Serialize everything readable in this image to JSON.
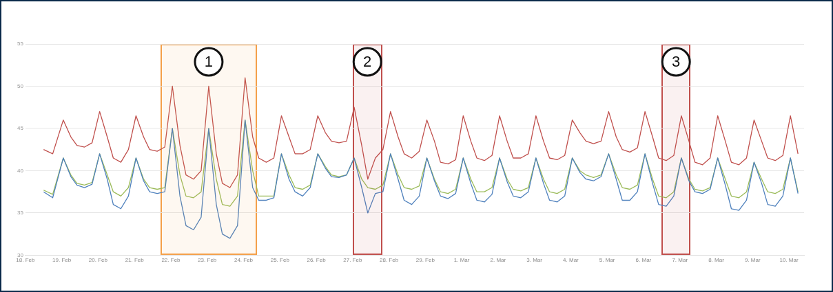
{
  "chart_data": {
    "type": "line",
    "x": [
      "--02-18T12:00",
      "--02-18T18:00",
      "--02-19T01:00",
      "--02-19T06:00",
      "--02-19T10:00",
      "--02-19T15:00",
      "--02-19T20:00",
      "--02-20T01:00",
      "--02-20T06:00",
      "--02-20T10:00",
      "--02-20T15:00",
      "--02-20T20:00",
      "--02-21T01:00",
      "--02-21T06:00",
      "--02-21T10:00",
      "--02-21T15:00",
      "--02-21T20:00",
      "--02-22T01:00",
      "--02-22T06:00",
      "--02-22T10:00",
      "--02-22T15:00",
      "--02-22T20:00",
      "--02-23T01:00",
      "--02-23T06:00",
      "--02-23T10:00",
      "--02-23T15:00",
      "--02-23T20:00",
      "--02-24T01:00",
      "--02-24T06:00",
      "--02-24T10:00",
      "--02-24T15:00",
      "--02-24T20:00",
      "--02-25T01:00",
      "--02-25T06:00",
      "--02-25T10:00",
      "--02-25T15:00",
      "--02-25T20:00",
      "--02-26T01:00",
      "--02-26T06:00",
      "--02-26T10:00",
      "--02-26T15:00",
      "--02-26T20:00",
      "--02-27T01:00",
      "--02-27T06:00",
      "--02-27T10:00",
      "--02-27T15:00",
      "--02-27T20:00",
      "--02-28T01:00",
      "--02-28T06:00",
      "--02-28T10:00",
      "--02-28T15:00",
      "--02-28T20:00",
      "--02-29T01:00",
      "--02-29T06:00",
      "--02-29T10:00",
      "--02-29T15:00",
      "--02-29T20:00",
      "--03-01T01:00",
      "--03-01T06:00",
      "--03-01T10:00",
      "--03-01T15:00",
      "--03-01T20:00",
      "--03-02T01:00",
      "--03-02T06:00",
      "--03-02T10:00",
      "--03-02T15:00",
      "--03-02T20:00",
      "--03-03T01:00",
      "--03-03T06:00",
      "--03-03T10:00",
      "--03-03T15:00",
      "--03-03T20:00",
      "--03-04T01:00",
      "--03-04T06:00",
      "--03-04T10:00",
      "--03-04T15:00",
      "--03-04T20:00",
      "--03-05T01:00",
      "--03-05T06:00",
      "--03-05T10:00",
      "--03-05T15:00",
      "--03-05T20:00",
      "--03-06T01:00",
      "--03-06T06:00",
      "--03-06T10:00",
      "--03-06T15:00",
      "--03-06T20:00",
      "--03-07T01:00",
      "--03-07T06:00",
      "--03-07T10:00",
      "--03-07T15:00",
      "--03-07T20:00",
      "--03-08T01:00",
      "--03-08T06:00",
      "--03-08T10:00",
      "--03-08T15:00",
      "--03-08T20:00",
      "--03-09T01:00",
      "--03-09T06:00",
      "--03-09T10:00",
      "--03-09T15:00",
      "--03-09T20:00",
      "--03-10T01:00",
      "--03-10T06:00"
    ],
    "series": [
      {
        "color": "#c0504d",
        "values": [
          42.5,
          42,
          46,
          44,
          43,
          42.8,
          43.3,
          47,
          44,
          41.5,
          41,
          42.5,
          46.5,
          44,
          42.5,
          42.3,
          42.8,
          50,
          43,
          39.5,
          39,
          40,
          50,
          42,
          38.5,
          38,
          39.5,
          51,
          44,
          41.5,
          41,
          41.5,
          46.5,
          44,
          42,
          42,
          42.5,
          46.5,
          44.5,
          43.5,
          43.3,
          43.5,
          47.5,
          43,
          39,
          41.5,
          42.5,
          47,
          44,
          42,
          41.5,
          42.3,
          46,
          43.5,
          41,
          40.8,
          41.3,
          46.5,
          43.5,
          41.5,
          41.2,
          41.8,
          46.5,
          43.5,
          41.5,
          41.5,
          42,
          46.5,
          43.5,
          41.5,
          41.3,
          41.8,
          46,
          44.5,
          43.5,
          43.2,
          43.5,
          47,
          44,
          42.5,
          42.2,
          42.7,
          47,
          44,
          41.5,
          41.2,
          41.8,
          46.5,
          43.5,
          41,
          40.7,
          41.5,
          46.5,
          43.5,
          41,
          40.7,
          41.5,
          46,
          43.5,
          41.5,
          41.2,
          41.8,
          46.5,
          42
        ]
      },
      {
        "color": "#4f81bd",
        "values": [
          37.5,
          36.8,
          41.5,
          39.3,
          38.3,
          38,
          38.4,
          42,
          39,
          36,
          35.5,
          37,
          41.5,
          38.8,
          37.5,
          37.3,
          37.5,
          45,
          37,
          33.5,
          33,
          34.5,
          45,
          36,
          32.5,
          32,
          33.5,
          46,
          38,
          36.5,
          36.5,
          36.8,
          42,
          39,
          37.5,
          37,
          38,
          42,
          40.3,
          39.3,
          39.2,
          39.5,
          41.5,
          38,
          35,
          37.3,
          37.5,
          42,
          39,
          36.5,
          36,
          37,
          41.5,
          38.8,
          37,
          36.7,
          37.3,
          41.5,
          38.5,
          36.5,
          36.3,
          37.2,
          41.5,
          38.7,
          37,
          36.8,
          37.5,
          41.5,
          38.5,
          36.5,
          36.3,
          37,
          41.5,
          39.8,
          39,
          38.8,
          39.3,
          42,
          39,
          36.5,
          36.5,
          37.5,
          42,
          38.5,
          36,
          35.8,
          37,
          41.5,
          38.8,
          37.5,
          37.3,
          37.8,
          41.5,
          38.3,
          35.5,
          35.3,
          36.5,
          41,
          38.5,
          36,
          35.8,
          37,
          41.5,
          37.3
        ]
      },
      {
        "color": "#9bbb59",
        "values": [
          37.7,
          37.2,
          41.5,
          39.5,
          38.5,
          38.3,
          38.6,
          42,
          39.5,
          37.5,
          37,
          38,
          41.5,
          39,
          38,
          37.8,
          38,
          45,
          39.5,
          37,
          36.8,
          37.5,
          45,
          39,
          36,
          35.8,
          37,
          46,
          40,
          37,
          37,
          37,
          42,
          39.5,
          38,
          37.8,
          38.3,
          42,
          40.5,
          39.5,
          39.3,
          39.5,
          41.5,
          39,
          38,
          37.8,
          38.3,
          42,
          39.5,
          38,
          37.8,
          38.2,
          41.5,
          39,
          37.5,
          37.3,
          37.8,
          41.5,
          39,
          37.5,
          37.5,
          38,
          41.5,
          39,
          37.8,
          37.6,
          38,
          41.5,
          39,
          37.5,
          37.3,
          37.8,
          41.5,
          40,
          39.5,
          39.2,
          39.5,
          42,
          39.5,
          38,
          37.8,
          38.3,
          42,
          39,
          37,
          36.8,
          37.5,
          41.5,
          39,
          37.8,
          37.6,
          38,
          41.5,
          39,
          37,
          36.8,
          37.5,
          41,
          39,
          37.5,
          37.3,
          37.8,
          41.5,
          37.5
        ]
      }
    ],
    "xlim": [
      "--02-18",
      "--03-10T10:00"
    ],
    "xticks": [
      {
        "value": "--02-18",
        "label": "18. Feb"
      },
      {
        "value": "--02-19",
        "label": "19. Feb"
      },
      {
        "value": "--02-20",
        "label": "20. Feb"
      },
      {
        "value": "--02-21",
        "label": "21. Feb"
      },
      {
        "value": "--02-22",
        "label": "22. Feb"
      },
      {
        "value": "--02-23",
        "label": "23. Feb"
      },
      {
        "value": "--02-24",
        "label": "24. Feb"
      },
      {
        "value": "--02-25",
        "label": "25. Feb"
      },
      {
        "value": "--02-26",
        "label": "26. Feb"
      },
      {
        "value": "--02-27",
        "label": "27. Feb"
      },
      {
        "value": "--02-28",
        "label": "28. Feb"
      },
      {
        "value": "--02-29",
        "label": "29. Feb"
      },
      {
        "value": "--03-01",
        "label": "1. Mar"
      },
      {
        "value": "--03-02",
        "label": "2. Mar"
      },
      {
        "value": "--03-03",
        "label": "3. Mar"
      },
      {
        "value": "--03-04",
        "label": "4. Mar"
      },
      {
        "value": "--03-05",
        "label": "5. Mar"
      },
      {
        "value": "--03-06",
        "label": "6. Mar"
      },
      {
        "value": "--03-07",
        "label": "7. Mar"
      },
      {
        "value": "--03-08",
        "label": "8. Mar"
      },
      {
        "value": "--03-09",
        "label": "9. Mar"
      },
      {
        "value": "--03-10",
        "label": "10. Mar"
      }
    ],
    "ylim": [
      30,
      55
    ],
    "yticks": [
      30,
      35,
      40,
      45,
      50,
      55
    ],
    "grid": "y",
    "legend": false,
    "marker": "none",
    "line_style": "solid",
    "bands": [
      {
        "axis": "x",
        "from": "--02-21T17:00",
        "to": "--02-24T09:00",
        "label": "1",
        "color": "#f5a04a"
      },
      {
        "axis": "x",
        "from": "--02-27T00:00",
        "to": "--02-27T19:30",
        "label": "2",
        "color": "#c0504d"
      },
      {
        "axis": "x",
        "from": "--03-06T12:00",
        "to": "--03-07T07:00",
        "label": "3",
        "color": "#c0504d"
      }
    ]
  }
}
